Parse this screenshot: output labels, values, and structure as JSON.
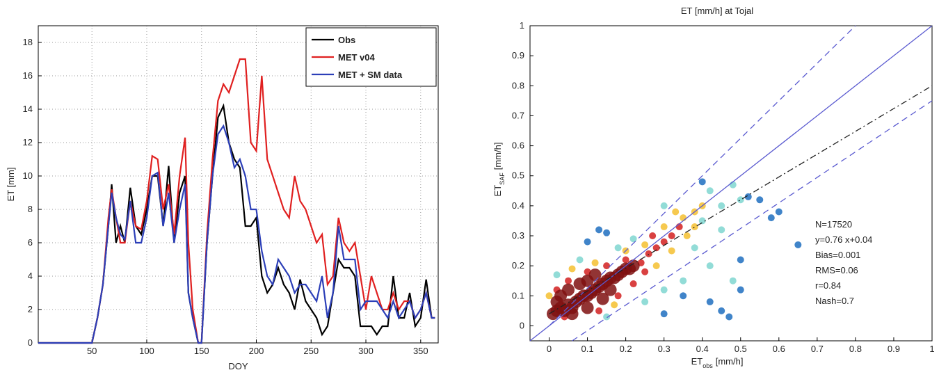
{
  "chart_data": [
    {
      "type": "line",
      "xlabel": "DOY",
      "ylabel": "ET [mm]",
      "xlim": [
        1,
        366
      ],
      "ylim": [
        0,
        19
      ],
      "xticks": [
        50,
        100,
        150,
        200,
        250,
        300,
        350
      ],
      "yticks": [
        0,
        2,
        4,
        6,
        8,
        10,
        12,
        14,
        16,
        18
      ],
      "grid": true,
      "legend": "upper right",
      "x": [
        1,
        50,
        55,
        60,
        65,
        68,
        72,
        76,
        80,
        85,
        90,
        95,
        100,
        105,
        110,
        115,
        120,
        125,
        130,
        135,
        138,
        142,
        147,
        150,
        155,
        160,
        165,
        170,
        175,
        180,
        185,
        190,
        195,
        200,
        205,
        210,
        215,
        220,
        225,
        230,
        235,
        240,
        245,
        250,
        255,
        260,
        265,
        270,
        275,
        280,
        285,
        290,
        295,
        300,
        305,
        310,
        315,
        320,
        325,
        330,
        335,
        340,
        345,
        350,
        355,
        360,
        363
      ],
      "series": [
        {
          "name": "Obs",
          "color": "#000000",
          "values": [
            0,
            0,
            1.5,
            3.5,
            7,
            9.5,
            6,
            7,
            6,
            9.3,
            7,
            6.5,
            8,
            10,
            10,
            7,
            10.6,
            6,
            9,
            10,
            3,
            1.5,
            0,
            0,
            6,
            10,
            13.5,
            14.2,
            12,
            11,
            10.5,
            7,
            7,
            7.5,
            4,
            3,
            3.5,
            4.5,
            3.5,
            3,
            2,
            3.8,
            2.5,
            2,
            1.5,
            0.5,
            1,
            3,
            5,
            4.5,
            4.5,
            4,
            1,
            1,
            1,
            0.5,
            1,
            1,
            4,
            1.5,
            1.5,
            3,
            1,
            1.5,
            3.8,
            1.5,
            1.5
          ]
        },
        {
          "name": "MET v04",
          "color": "#e02020",
          "values": [
            0,
            0,
            1.5,
            3.5,
            7.5,
            9.2,
            7.5,
            6,
            6,
            8.5,
            7,
            6.8,
            8.5,
            11.2,
            11,
            8,
            9.5,
            6.5,
            10,
            12.3,
            6,
            2,
            0,
            0,
            6.5,
            11,
            14.5,
            15.5,
            15,
            16,
            17,
            17,
            12,
            11.5,
            16,
            11,
            10,
            9,
            8,
            7.5,
            10,
            8.5,
            8,
            7,
            6,
            6.5,
            3.5,
            4,
            7.5,
            6,
            5.5,
            6,
            4,
            2,
            4,
            3,
            2,
            2,
            3,
            2,
            2.5,
            2.5,
            1.5,
            2,
            3,
            1.5,
            1.5
          ]
        },
        {
          "name": "MET + SM data",
          "color": "#2c3fb8",
          "values": [
            0,
            0,
            1.5,
            3.5,
            7,
            9,
            7.5,
            6.5,
            6.2,
            8.5,
            6,
            6,
            7.5,
            10,
            10.2,
            7,
            9,
            6,
            8,
            9.5,
            3,
            1.5,
            0,
            0,
            6,
            10,
            12.5,
            13,
            12,
            10.5,
            11,
            10,
            8,
            8,
            5.5,
            4,
            3.5,
            5,
            4.5,
            4,
            3,
            3.5,
            3.5,
            3,
            2.5,
            4,
            1.5,
            3,
            7,
            5,
            5,
            5,
            2,
            2.5,
            2.5,
            2.5,
            2,
            1.5,
            2.5,
            1.5,
            2,
            2.5,
            1.5,
            2,
            3,
            1.5,
            1.5
          ]
        }
      ]
    },
    {
      "type": "scatter",
      "title": "ET [mm/h] at Tojal",
      "xlabel": {
        "text": "ET",
        "sub": "obs",
        "unit": "[mm/h]"
      },
      "ylabel": {
        "text": "ET",
        "sub": "SAF",
        "unit": "[mm/h]"
      },
      "xlim": [
        -0.05,
        1
      ],
      "ylim": [
        -0.05,
        1
      ],
      "xticks": [
        0,
        0.1,
        0.2,
        0.3,
        0.4,
        0.5,
        0.6,
        0.7,
        0.8,
        0.9,
        1
      ],
      "yticks": [
        0,
        0.1,
        0.2,
        0.3,
        0.4,
        0.5,
        0.6,
        0.7,
        0.8,
        0.9,
        1
      ],
      "grid": false,
      "annotations": [
        "N=17520",
        "y=0.76 x+0.04",
        "Bias=0.001",
        "RMS=0.06",
        "r=0.84",
        "Nash=0.7"
      ],
      "series": [
        {
          "color": "#7fd6d0",
          "x": [
            0.42,
            0.45,
            0.48,
            0.4,
            0.3,
            0.22,
            0.08,
            0.02,
            0.25,
            0.35,
            0.42,
            0.45,
            0.5,
            0.3,
            0.15,
            0.48,
            0.38,
            0.18
          ],
          "y": [
            0.45,
            0.4,
            0.47,
            0.35,
            0.4,
            0.29,
            0.22,
            0.17,
            0.08,
            0.15,
            0.2,
            0.32,
            0.42,
            0.12,
            0.03,
            0.15,
            0.26,
            0.26
          ]
        },
        {
          "color": "#1f6fc0",
          "x": [
            0.65,
            0.6,
            0.55,
            0.52,
            0.5,
            0.5,
            0.47,
            0.42,
            0.3,
            0.13,
            0.15,
            0.35,
            0.4,
            0.1,
            0.58,
            0.45
          ],
          "y": [
            0.27,
            0.38,
            0.42,
            0.43,
            0.22,
            0.12,
            0.03,
            0.08,
            0.04,
            0.32,
            0.31,
            0.1,
            0.48,
            0.28,
            0.36,
            0.05
          ]
        },
        {
          "color": "#f5c030",
          "x": [
            0.35,
            0.33,
            0.38,
            0.3,
            0.36,
            0.25,
            0.12,
            0.06,
            0.28,
            0.2,
            0.4,
            0.32,
            0.0,
            0.17,
            0.38
          ],
          "y": [
            0.36,
            0.38,
            0.33,
            0.33,
            0.3,
            0.27,
            0.21,
            0.19,
            0.2,
            0.25,
            0.4,
            0.25,
            0.1,
            0.07,
            0.38
          ]
        },
        {
          "color": "#d22020",
          "x": [
            0.24,
            0.26,
            0.28,
            0.3,
            0.25,
            0.2,
            0.15,
            0.1,
            0.05,
            0.02,
            0.22,
            0.18,
            0.32,
            0.34,
            0.27,
            0.04,
            0.13
          ],
          "y": [
            0.21,
            0.24,
            0.26,
            0.28,
            0.18,
            0.22,
            0.2,
            0.18,
            0.15,
            0.12,
            0.14,
            0.1,
            0.3,
            0.33,
            0.3,
            0.03,
            0.05
          ]
        },
        {
          "color": "#7f1010",
          "x": [
            0.01,
            0.02,
            0.03,
            0.04,
            0.05,
            0.06,
            0.07,
            0.08,
            0.09,
            0.1,
            0.11,
            0.12,
            0.13,
            0.14,
            0.15,
            0.16,
            0.17,
            0.18,
            0.19,
            0.2,
            0.21,
            0.22,
            0.03,
            0.05,
            0.08,
            0.1,
            0.06,
            0.1,
            0.14,
            0.02,
            0.16,
            0.12
          ],
          "y": [
            0.04,
            0.05,
            0.06,
            0.05,
            0.07,
            0.06,
            0.08,
            0.09,
            0.1,
            0.1,
            0.11,
            0.12,
            0.13,
            0.14,
            0.15,
            0.16,
            0.16,
            0.17,
            0.18,
            0.19,
            0.19,
            0.2,
            0.1,
            0.12,
            0.14,
            0.15,
            0.04,
            0.06,
            0.09,
            0.08,
            0.12,
            0.17
          ]
        }
      ],
      "lines": [
        {
          "color": "#5a5ad0",
          "style": "solid",
          "x": [
            -0.05,
            1
          ],
          "y": [
            -0.05,
            1
          ]
        },
        {
          "color": "#5a5ad0",
          "style": "dashed",
          "x": [
            0,
            0.8
          ],
          "y": [
            0,
            1
          ]
        },
        {
          "color": "#5a5ad0",
          "style": "dashed",
          "x": [
            0.06,
            1
          ],
          "y": [
            -0.05,
            0.75
          ]
        },
        {
          "color": "#222222",
          "style": "dashdot",
          "x": [
            0,
            1
          ],
          "y": [
            0.04,
            0.8
          ]
        }
      ]
    }
  ]
}
